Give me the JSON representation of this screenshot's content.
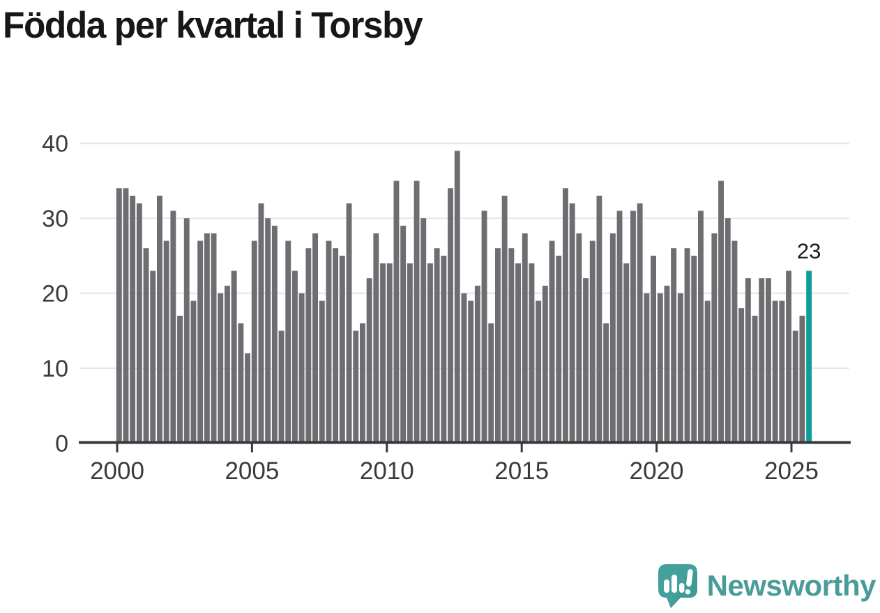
{
  "title": "Födda per kvartal i Torsby",
  "branding": {
    "name": "Newsworthy",
    "logo_icon": "newsworthy-speech-bubble-chart-icon"
  },
  "colors": {
    "bar": "#6d6d72",
    "highlight": "#0e9e99",
    "gridline": "#e6e6e6",
    "axis": "#38383a",
    "tick_label": "#3a3a3a",
    "title_text": "#171717",
    "annotation_text": "#1a1a1a",
    "brand_teal": "#4a9c98",
    "background": "#ffffff"
  },
  "chart_data": {
    "type": "bar",
    "title": "Födda per kvartal i Torsby",
    "xlabel": "",
    "ylabel": "",
    "x_unit": "quarter",
    "start_year": 2000,
    "start_quarter": 1,
    "end_year": 2025,
    "end_quarter": 3,
    "x_tick_labels": [
      "2000",
      "2005",
      "2010",
      "2015",
      "2020",
      "2025"
    ],
    "y_ticks": [
      0,
      10,
      20,
      30,
      40
    ],
    "ylim": [
      0,
      40
    ],
    "grid": "horizontal",
    "legend": "none",
    "series": [
      {
        "name": "Födda per kvartal",
        "values": [
          34,
          34,
          33,
          32,
          26,
          23,
          33,
          27,
          31,
          17,
          30,
          19,
          27,
          28,
          28,
          20,
          21,
          23,
          16,
          12,
          27,
          32,
          30,
          29,
          15,
          27,
          23,
          20,
          26,
          28,
          19,
          27,
          26,
          25,
          32,
          15,
          16,
          22,
          28,
          24,
          24,
          35,
          29,
          24,
          35,
          30,
          24,
          26,
          25,
          34,
          39,
          20,
          19,
          21,
          31,
          16,
          26,
          33,
          26,
          24,
          28,
          24,
          19,
          21,
          27,
          25,
          34,
          32,
          28,
          22,
          27,
          33,
          16,
          28,
          31,
          24,
          31,
          32,
          20,
          25,
          20,
          21,
          26,
          20,
          26,
          25,
          31,
          19,
          28,
          35,
          30,
          27,
          18,
          22,
          17,
          22,
          22,
          19,
          19,
          23,
          15,
          17,
          23
        ]
      }
    ],
    "highlight": {
      "index": 102,
      "period": "2025 Q3",
      "value": 23,
      "label": "23"
    }
  }
}
